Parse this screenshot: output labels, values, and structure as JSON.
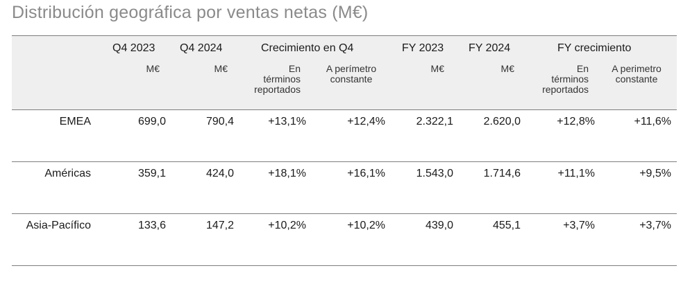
{
  "title": "Distribución geográfica por ventas netas (M€)",
  "columns": {
    "q4_2023": {
      "label": "Q4 2023",
      "unit": "M€"
    },
    "q4_2024": {
      "label": "Q4 2024",
      "unit": "M€"
    },
    "q4_growth": {
      "label": "Crecimiento en Q4",
      "reported": "En\ntérminos\nreportados",
      "constant": "A perímetro\nconstante"
    },
    "fy_2023": {
      "label": "FY 2023",
      "unit": "M€"
    },
    "fy_2024": {
      "label": "FY 2024",
      "unit": "M€"
    },
    "fy_growth": {
      "label": "FY crecimiento",
      "reported": "En\ntérminos\nreportados",
      "constant": "A perimetro\nconstante"
    }
  },
  "rows": [
    {
      "region": "EMEA",
      "q4_2023": "699,0",
      "q4_2024": "790,4",
      "q4_rep": "+13,1%",
      "q4_const": "+12,4%",
      "fy_2023": "2.322,1",
      "fy_2024": "2.620,0",
      "fy_rep": "+12,8%",
      "fy_const": "+11,6%"
    },
    {
      "region": "Américas",
      "q4_2023": "359,1",
      "q4_2024": "424,0",
      "q4_rep": "+18,1%",
      "q4_const": "+16,1%",
      "fy_2023": "1.543,0",
      "fy_2024": "1.714,6",
      "fy_rep": "+11,1%",
      "fy_const": "+9,5%"
    },
    {
      "region": "Asia-Pacífico",
      "q4_2023": "133,6",
      "q4_2024": "147,2",
      "q4_rep": "+10,2%",
      "q4_const": "+10,2%",
      "fy_2023": "439,0",
      "fy_2024": "455,1",
      "fy_rep": "+3,7%",
      "fy_const": "+3,7%"
    }
  ]
}
